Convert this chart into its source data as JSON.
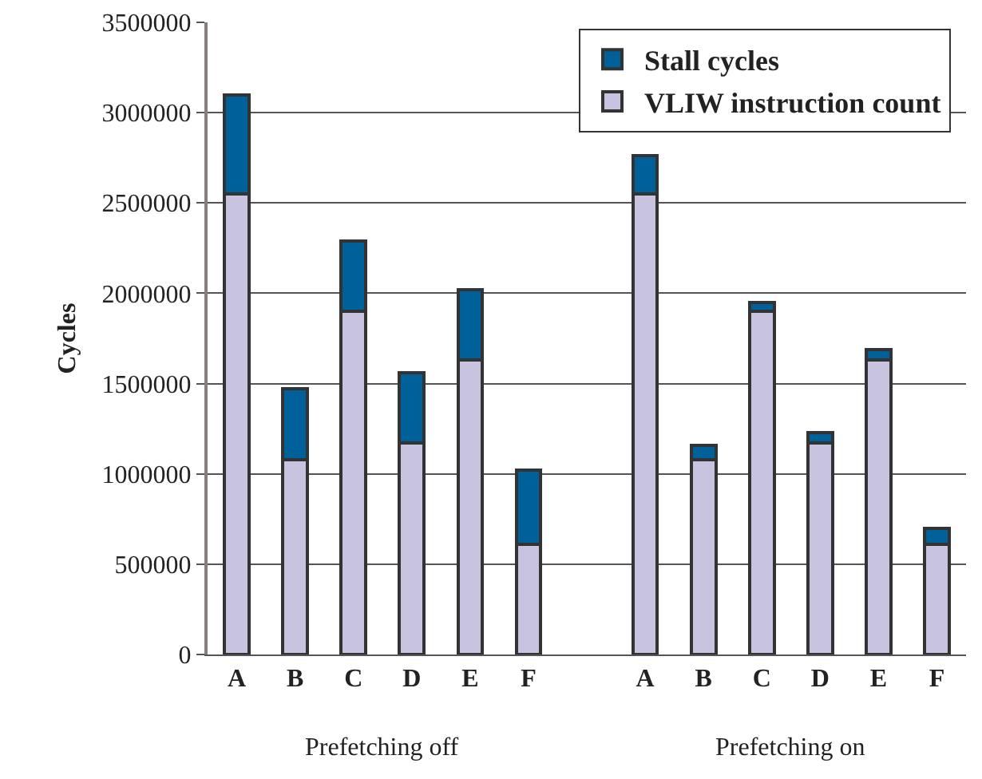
{
  "chart_data": {
    "type": "bar",
    "stacked": true,
    "ylabel": "Cycles",
    "categories": [
      "A",
      "B",
      "C",
      "D",
      "E",
      "F",
      null,
      "A",
      "B",
      "C",
      "D",
      "E",
      "F"
    ],
    "series": [
      {
        "name": "VLIW instruction count",
        "color": "#c8c4e0",
        "values": [
          2550000,
          1080000,
          1900000,
          1170000,
          1630000,
          610000,
          null,
          2550000,
          1080000,
          1900000,
          1170000,
          1630000,
          610000
        ]
      },
      {
        "name": "Stall cycles",
        "color": "#00609a",
        "values": [
          550000,
          390000,
          390000,
          390000,
          390000,
          410000,
          null,
          210000,
          80000,
          50000,
          60000,
          60000,
          90000
        ]
      }
    ],
    "annotations": [
      "Prefetching off",
      "Prefetching on"
    ],
    "ylim": [
      0,
      3500000
    ],
    "yticks": [
      0,
      500000,
      1000000,
      1500000,
      2000000,
      2500000,
      3000000,
      3500000
    ],
    "grid": "y",
    "legend": "top right"
  }
}
